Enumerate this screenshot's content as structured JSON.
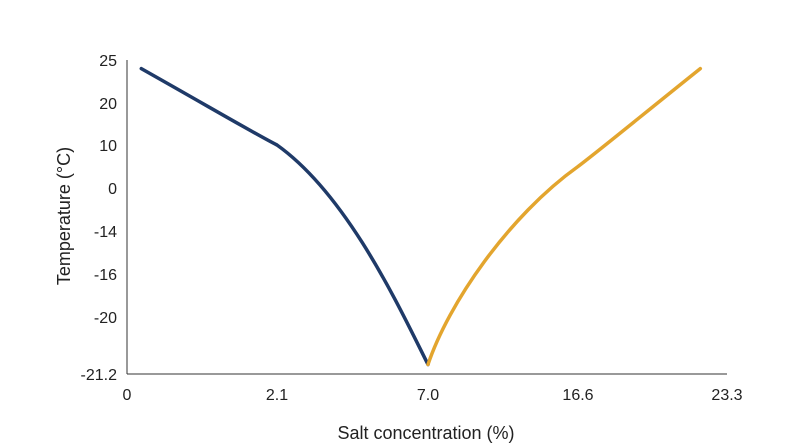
{
  "chart_data": {
    "type": "line",
    "title": "",
    "xlabel": "Salt concentration (%)",
    "ylabel": "Temperature (°C)",
    "x_tick_labels": [
      "0",
      "2.1",
      "7.0",
      "16.6",
      "23.3"
    ],
    "y_tick_labels": [
      "25",
      "20",
      "10",
      "0",
      "-14",
      "-16",
      "-20",
      "-21.2"
    ],
    "grid": false,
    "legend": "none",
    "series": [
      {
        "color": "#1f3a68",
        "points": [
          {
            "x": 0.2,
            "y": 24
          },
          {
            "x": 2.1,
            "y": 10
          },
          {
            "x": 7.0,
            "y": -21
          }
        ]
      },
      {
        "color": "#e3a52e",
        "points": [
          {
            "x": 7.0,
            "y": -21
          },
          {
            "x": 16.6,
            "y": 5
          },
          {
            "x": 22.1,
            "y": 24
          }
        ]
      }
    ]
  }
}
